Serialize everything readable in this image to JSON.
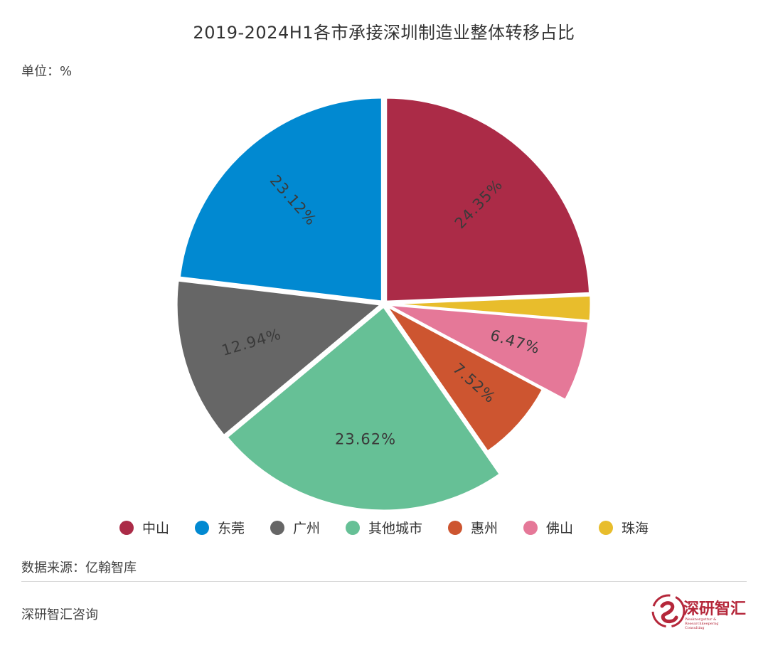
{
  "title": "2019-2024H1各市承接深圳制造业整体转移占比",
  "unit": "单位：%",
  "source": "数据来源：亿翰智库",
  "footer": "深研智汇咨询",
  "logo": {
    "text": "深研智汇",
    "subtitle": "Weaknorguttur & Researchkeeperng Consulting"
  },
  "chart_data": {
    "type": "pie",
    "title": "2019-2024H1各市承接深圳制造业整体转移占比",
    "unit": "%",
    "start": "12 o'clock, clockwise",
    "legend_position": "bottom",
    "slices": [
      {
        "name": "中山",
        "value": 24.35,
        "label": "24.35%",
        "color": "#ab2b47",
        "label_rotate": true
      },
      {
        "name": "珠海",
        "value": 2.0,
        "label": "",
        "color": "#e8bd2c",
        "label_rotate": true
      },
      {
        "name": "佛山",
        "value": 6.47,
        "label": "6.47%",
        "color": "#e57898",
        "label_rotate": true
      },
      {
        "name": "惠州",
        "value": 7.52,
        "label": "7.52%",
        "color": "#cd5530",
        "label_rotate": true
      },
      {
        "name": "其他城市",
        "value": 23.62,
        "label": "23.62%",
        "color": "#66c096",
        "label_rotate": false
      },
      {
        "name": "广州",
        "value": 12.94,
        "label": "12.94%",
        "color": "#666666",
        "label_rotate": true
      },
      {
        "name": "东莞",
        "value": 23.12,
        "label": "23.12%",
        "color": "#0189d1",
        "label_rotate": true
      }
    ],
    "legend": [
      "中山",
      "东莞",
      "广州",
      "其他城市",
      "惠州",
      "佛山",
      "珠海"
    ]
  }
}
